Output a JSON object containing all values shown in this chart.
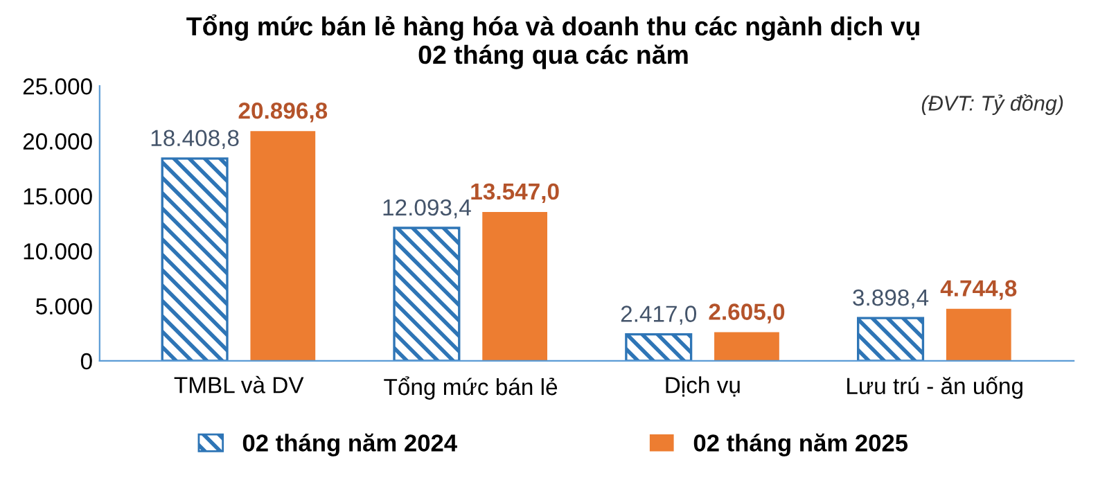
{
  "chart_data": {
    "type": "bar",
    "title": "Tổng mức bán lẻ hàng hóa và doanh thu các ngành dịch vụ\n02 tháng qua các năm",
    "categories": [
      "TMBL và DV",
      "Tổng mức bán lẻ",
      "Dịch vụ",
      "Lưu trú - ăn uống"
    ],
    "series": [
      {
        "name": "02 tháng năm 2024",
        "color": "#2e75b6",
        "values": [
          18408.8,
          12093.4,
          2417.0,
          3898.4
        ],
        "value_labels": [
          "18.408,8",
          "12.093,4",
          "2.417,0",
          "3.898,4"
        ]
      },
      {
        "name": "02 tháng năm 2025",
        "color": "#ed7d31",
        "values": [
          20896.8,
          13547.0,
          2605.0,
          4744.8
        ],
        "value_labels": [
          "20.896,8",
          "13.547,0",
          "2.605,0",
          "4.744,8"
        ]
      }
    ],
    "ylim": [
      0,
      25000
    ],
    "yticks": [
      {
        "value": 0,
        "label": "0"
      },
      {
        "value": 5000,
        "label": "5.000"
      },
      {
        "value": 10000,
        "label": "10.000"
      },
      {
        "value": 15000,
        "label": "15.000"
      },
      {
        "value": 20000,
        "label": "20.000"
      },
      {
        "value": 25000,
        "label": "25.000"
      }
    ],
    "annotations": [
      "(ĐVT: Tỷ đồng)"
    ],
    "grid": false,
    "legend": "bottom"
  }
}
